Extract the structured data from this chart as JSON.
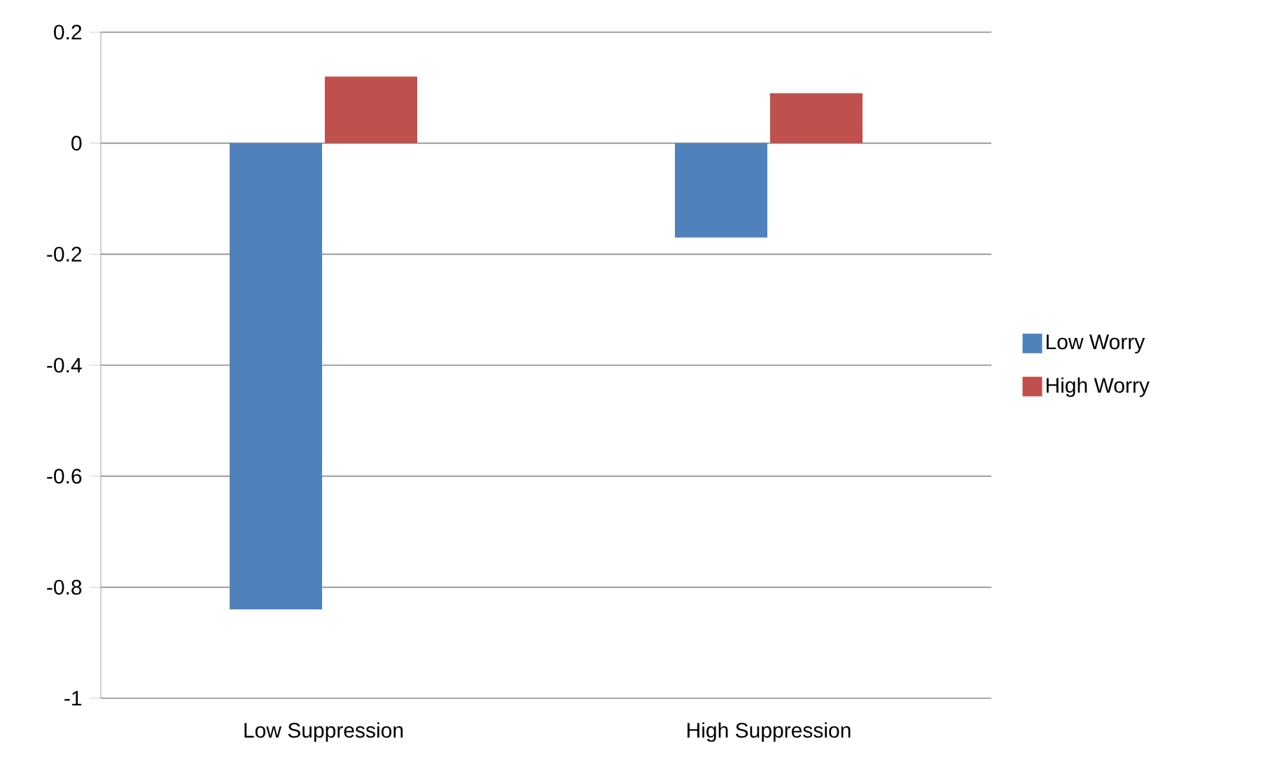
{
  "chart_data": {
    "type": "bar",
    "categories": [
      "Low Suppression",
      "High Suppression"
    ],
    "series": [
      {
        "name": "Low Worry",
        "color": "#4f81bd",
        "values": [
          -0.84,
          -0.17
        ]
      },
      {
        "name": "High Worry",
        "color": "#c0504d",
        "values": [
          0.12,
          0.09
        ]
      }
    ],
    "ylim": [
      -1,
      0.2
    ],
    "yticks": [
      0.2,
      0,
      -0.2,
      -0.4,
      -0.6,
      -0.8,
      -1
    ],
    "grid": "y",
    "legend": "right"
  }
}
